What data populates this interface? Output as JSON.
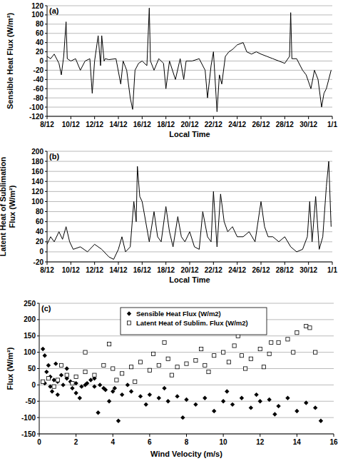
{
  "chart_data": [
    {
      "type": "line",
      "title": "(a)",
      "x_label": "Local Time",
      "y_label": [
        "Sensible Heat Flux (W/m²)"
      ],
      "color": "#000000",
      "grid": true,
      "xlim": [
        8,
        32
      ],
      "xticks": [
        {
          "value": 8,
          "label": "8/12"
        },
        {
          "value": 10,
          "label": "10/12"
        },
        {
          "value": 12,
          "label": "12/12"
        },
        {
          "value": 14,
          "label": "14/12"
        },
        {
          "value": 16,
          "label": "16/12"
        },
        {
          "value": 18,
          "label": "18/12"
        },
        {
          "value": 20,
          "label": "20/12"
        },
        {
          "value": 22,
          "label": "22/12"
        },
        {
          "value": 24,
          "label": "24/12"
        },
        {
          "value": 26,
          "label": "26/12"
        },
        {
          "value": 28,
          "label": "28/12"
        },
        {
          "value": 30,
          "label": "30/12"
        },
        {
          "value": 32,
          "label": "1/1"
        }
      ],
      "ylim": [
        -120,
        120
      ],
      "yticks": [
        -120,
        -100,
        -80,
        -60,
        -40,
        -20,
        0,
        20,
        40,
        60,
        80,
        100,
        120
      ],
      "x": [
        8.0,
        8.3,
        8.6,
        9.0,
        9.2,
        9.4,
        9.6,
        9.7,
        10.0,
        10.4,
        10.8,
        11.2,
        11.6,
        11.8,
        12.0,
        12.3,
        12.5,
        12.6,
        12.8,
        12.9,
        13.2,
        13.8,
        14.2,
        14.4,
        14.7,
        15.0,
        15.2,
        15.4,
        15.7,
        16.0,
        16.4,
        16.6,
        16.7,
        17.0,
        17.4,
        17.8,
        18.0,
        18.3,
        18.8,
        19.2,
        19.5,
        19.7,
        20.2,
        20.8,
        21.3,
        21.5,
        21.8,
        22.0,
        22.3,
        22.5,
        22.7,
        23.0,
        23.3,
        23.6,
        24.0,
        24.5,
        24.8,
        25.2,
        25.6,
        26.0,
        26.5,
        27.0,
        27.5,
        28.0,
        28.4,
        28.5,
        28.6,
        29.0,
        29.5,
        29.8,
        30.2,
        30.5,
        30.8,
        31.1,
        31.3,
        31.5,
        31.7,
        31.9
      ],
      "values": [
        10,
        5,
        15,
        -5,
        -30,
        10,
        85,
        5,
        0,
        5,
        -20,
        0,
        5,
        -70,
        0,
        55,
        -10,
        55,
        0,
        5,
        3,
        5,
        -50,
        0,
        -20,
        -80,
        -105,
        -20,
        -5,
        0,
        -10,
        115,
        0,
        -20,
        5,
        -5,
        -60,
        0,
        -40,
        5,
        -40,
        0,
        0,
        5,
        -20,
        -80,
        -10,
        20,
        -110,
        -30,
        -50,
        10,
        20,
        25,
        35,
        40,
        20,
        15,
        20,
        15,
        10,
        5,
        0,
        -5,
        10,
        105,
        5,
        5,
        -20,
        -30,
        -60,
        -20,
        -40,
        -100,
        -70,
        -60,
        -40,
        -20
      ]
    },
    {
      "type": "line",
      "title": "(b)",
      "x_label": "Local Time",
      "y_label": [
        "Latent Heat of Sublimation",
        "Flux (W/m²)"
      ],
      "color": "#000000",
      "grid": true,
      "xlim": [
        8,
        32
      ],
      "xticks": [
        {
          "value": 8,
          "label": "8/12"
        },
        {
          "value": 10,
          "label": "10/12"
        },
        {
          "value": 12,
          "label": "12/12"
        },
        {
          "value": 14,
          "label": "14/12"
        },
        {
          "value": 16,
          "label": "16/12"
        },
        {
          "value": 18,
          "label": "18/12"
        },
        {
          "value": 20,
          "label": "20/12"
        },
        {
          "value": 22,
          "label": "22/12"
        },
        {
          "value": 24,
          "label": "24/12"
        },
        {
          "value": 26,
          "label": "26/12"
        },
        {
          "value": 28,
          "label": "28/12"
        },
        {
          "value": 30,
          "label": "30/12"
        },
        {
          "value": 32,
          "label": "1/1"
        }
      ],
      "ylim": [
        -20,
        200
      ],
      "yticks": [
        -20,
        0,
        20,
        40,
        60,
        80,
        100,
        120,
        140,
        160,
        180,
        200
      ],
      "x": [
        8.0,
        8.3,
        8.6,
        9.0,
        9.3,
        9.6,
        9.9,
        10.2,
        10.8,
        11.4,
        12.0,
        12.6,
        13.2,
        13.6,
        14.0,
        14.3,
        14.6,
        15.0,
        15.3,
        15.5,
        15.6,
        15.8,
        16.0,
        16.3,
        16.6,
        17.0,
        17.3,
        17.6,
        18.0,
        18.3,
        18.6,
        19.0,
        19.3,
        19.6,
        20.0,
        20.4,
        20.8,
        21.1,
        21.5,
        21.8,
        22.0,
        22.3,
        22.6,
        22.9,
        23.2,
        23.6,
        24.0,
        24.5,
        25.0,
        25.5,
        26.0,
        26.3,
        26.6,
        27.0,
        27.5,
        28.0,
        28.5,
        29.0,
        29.5,
        29.9,
        30.1,
        30.3,
        30.6,
        30.9,
        31.2,
        31.5,
        31.7,
        31.9
      ],
      "values": [
        15,
        30,
        20,
        40,
        25,
        50,
        20,
        5,
        10,
        0,
        15,
        5,
        -10,
        -15,
        5,
        30,
        0,
        10,
        100,
        60,
        170,
        110,
        100,
        60,
        20,
        80,
        30,
        20,
        90,
        40,
        10,
        70,
        30,
        20,
        40,
        10,
        5,
        80,
        30,
        20,
        120,
        10,
        115,
        60,
        40,
        50,
        30,
        30,
        40,
        20,
        100,
        50,
        30,
        30,
        20,
        30,
        10,
        0,
        5,
        30,
        100,
        20,
        110,
        5,
        30,
        130,
        180,
        50
      ]
    },
    {
      "type": "scatter",
      "title": "(c)",
      "x_label": "Wind Velocity (m/s)",
      "y_label": [
        "Flux (W/m²)"
      ],
      "grid": true,
      "legend": "top",
      "xlim": [
        0,
        16
      ],
      "xticks": [
        0,
        2,
        4,
        6,
        8,
        10,
        12,
        14,
        16
      ],
      "ylim": [
        -150,
        250
      ],
      "yticks": [
        -150,
        -100,
        -50,
        0,
        50,
        100,
        150,
        200,
        250
      ],
      "series": [
        {
          "name": "Sensible Heat Flux (W/m2)",
          "color": "#000000",
          "marker": "diamond",
          "x": [
            0.2,
            0.3,
            0.5,
            0.4,
            0.6,
            0.8,
            1.0,
            1.2,
            1.5,
            2.0,
            2.5,
            3.0,
            3.5,
            4.0,
            4.3,
            4.5,
            5.0,
            5.5,
            6.0,
            6.5,
            7.0,
            7.5,
            8.0,
            8.5,
            9.0,
            10.0,
            10.5,
            11.0,
            11.5,
            12.0,
            12.5,
            13.0,
            13.5,
            14.0,
            14.5,
            15.0,
            15.3,
            1.0,
            2.0,
            3.0,
            1.5,
            2.2,
            0.7,
            3.8,
            5.8,
            9.5,
            10.2,
            11.8,
            12.8,
            7.8,
            6.8,
            4.8,
            2.8,
            1.8,
            0.9,
            3.2,
            0.3,
            0.6,
            1.3,
            1.7,
            2.3,
            2.6,
            3.3,
            3.6,
            4.1
          ],
          "values": [
            110,
            90,
            60,
            40,
            25,
            15,
            10,
            30,
            20,
            5,
            0,
            -5,
            -10,
            -20,
            -110,
            -30,
            -20,
            -35,
            -30,
            -40,
            -50,
            -35,
            -45,
            -60,
            -40,
            -50,
            -60,
            -40,
            -70,
            -50,
            -45,
            -65,
            -40,
            -80,
            -55,
            -70,
            -110,
            -30,
            -25,
            20,
            50,
            -40,
            -20,
            -50,
            -60,
            -80,
            -20,
            -30,
            -90,
            -100,
            -10,
            0,
            15,
            -10,
            65,
            -85,
            5,
            -5,
            0,
            10,
            -5,
            5,
            0,
            -15,
            -10
          ]
        },
        {
          "name": "Latent Heat of Sublim. Flux (W/m2)",
          "color": "#000000",
          "marker": "square",
          "x": [
            0.2,
            0.5,
            1.0,
            1.5,
            2.0,
            2.5,
            3.0,
            3.5,
            4.0,
            4.5,
            5.0,
            5.5,
            6.0,
            6.5,
            7.0,
            7.5,
            8.0,
            8.5,
            9.0,
            9.5,
            10.0,
            10.3,
            10.6,
            11.0,
            11.5,
            12.0,
            12.5,
            13.0,
            13.5,
            13.8,
            14.0,
            14.5,
            14.7,
            15.0,
            3.8,
            6.8,
            2.5,
            1.2,
            0.8,
            1.8,
            4.2,
            5.2,
            7.2,
            9.2,
            11.2,
            12.2,
            8.8,
            10.8,
            12.6,
            6.2
          ],
          "values": [
            10,
            20,
            15,
            30,
            25,
            40,
            30,
            60,
            50,
            35,
            55,
            70,
            45,
            60,
            80,
            55,
            65,
            75,
            60,
            90,
            100,
            70,
            120,
            90,
            80,
            110,
            95,
            130,
            140,
            100,
            160,
            180,
            175,
            100,
            125,
            130,
            100,
            60,
            -5,
            5,
            15,
            10,
            30,
            40,
            50,
            55,
            110,
            150,
            130,
            95
          ]
        }
      ]
    }
  ]
}
